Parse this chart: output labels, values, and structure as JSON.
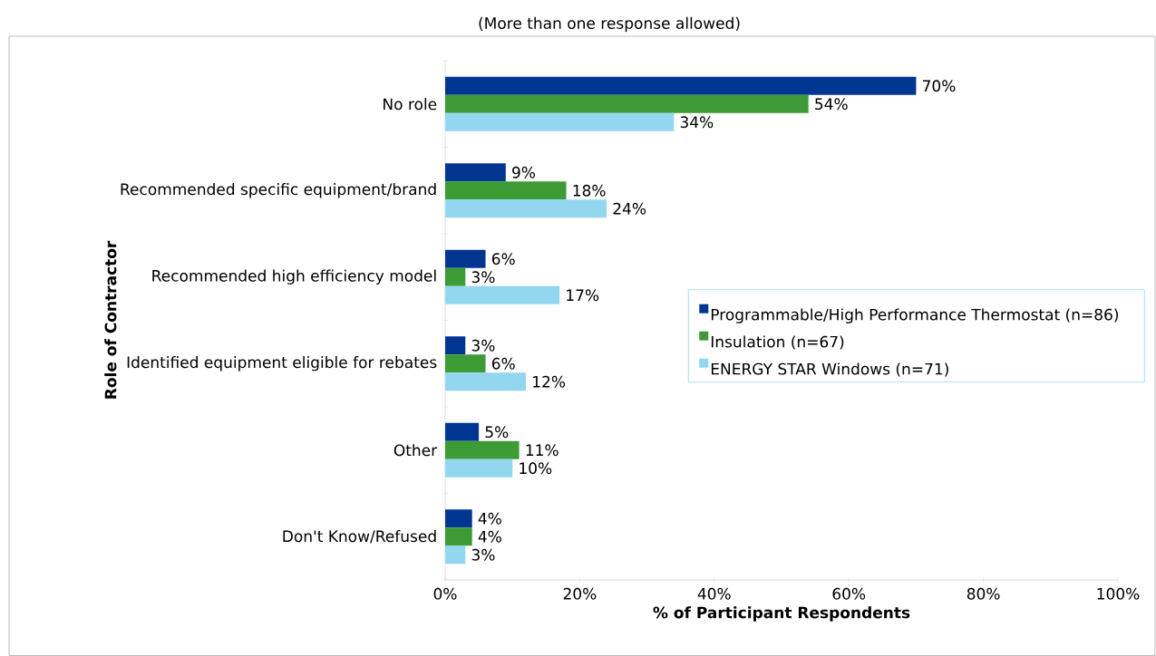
{
  "chart_data": {
    "type": "bar",
    "orientation": "horizontal",
    "title": "(More than one response allowed)",
    "xlabel": "% of Participant Respondents",
    "ylabel": "Role of Contractor",
    "categories": [
      "No role",
      "Recommended specific equipment/brand",
      "Recommended high efficiency model",
      "Identified equipment eligible for rebates",
      "Other",
      "Don't Know/Refused"
    ],
    "series": [
      {
        "name": "Programmable/High Performance Thermostat (n=86)",
        "color": "#003591",
        "values": [
          70,
          9,
          6,
          3,
          5,
          4
        ],
        "value_labels": [
          "70%",
          "9%",
          "6%",
          "3%",
          "5%",
          "4%"
        ]
      },
      {
        "name": "Insulation (n=67)",
        "color": "#3c9b35",
        "values": [
          54,
          18,
          3,
          6,
          11,
          4
        ],
        "value_labels": [
          "54%",
          "18%",
          "3%",
          "6%",
          "11%",
          "4%"
        ]
      },
      {
        "name": "ENERGY STAR Windows (n=71)",
        "color": "#93d6ef",
        "values": [
          34,
          24,
          17,
          12,
          10,
          3
        ],
        "value_labels": [
          "34%",
          "24%",
          "17%",
          "12%",
          "10%",
          "3%"
        ]
      }
    ],
    "xlim": [
      0,
      100
    ],
    "xticks": [
      {
        "value": 0,
        "label": "0%"
      },
      {
        "value": 20,
        "label": "20%"
      },
      {
        "value": 40,
        "label": "40%"
      },
      {
        "value": 60,
        "label": "60%"
      },
      {
        "value": 80,
        "label": "80%"
      },
      {
        "value": 100,
        "label": "100%"
      }
    ],
    "legend": "right",
    "grid": false
  }
}
